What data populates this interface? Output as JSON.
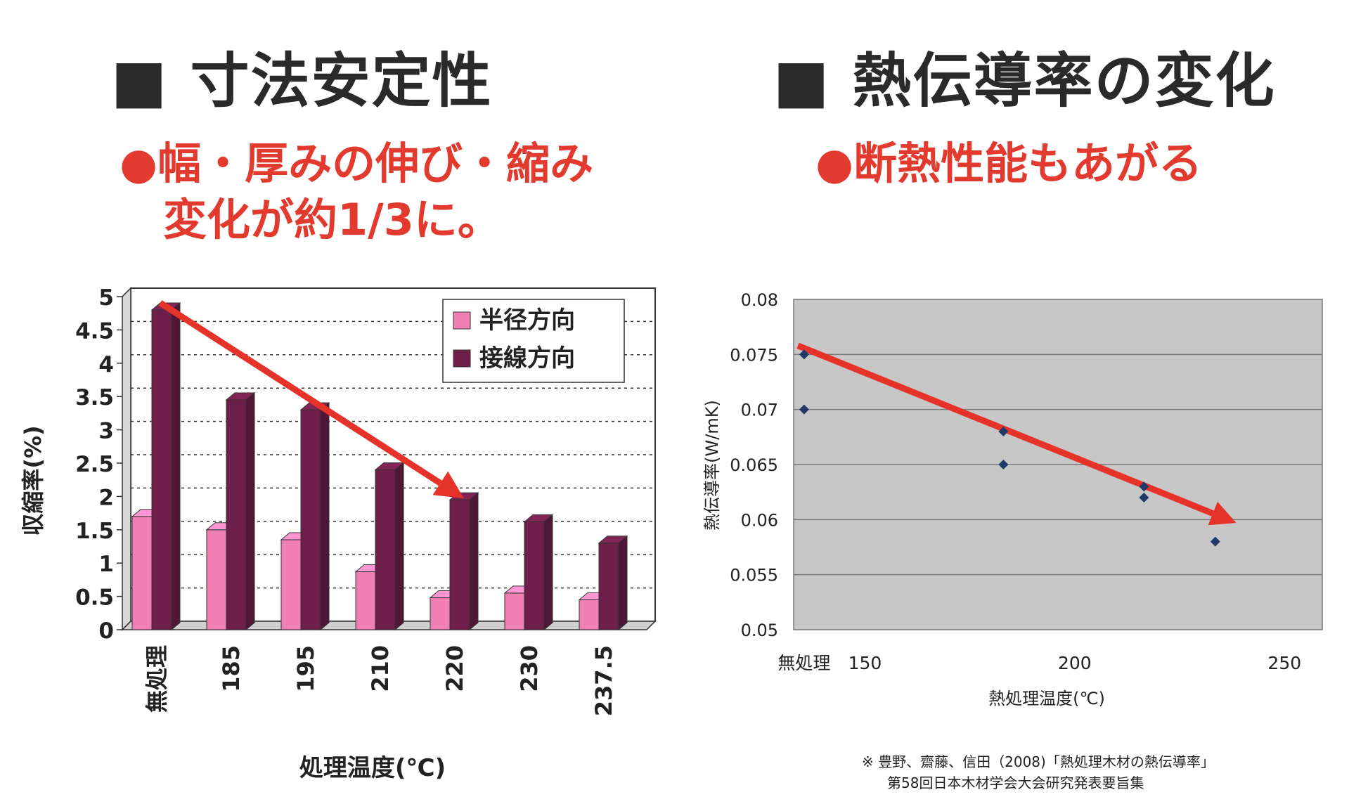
{
  "left": {
    "heading": "■ 寸法安定性",
    "sub_line1": "●幅・厚みの伸び・縮み",
    "sub_line2": "変化が約1/3に。"
  },
  "right": {
    "heading": "■ 熱伝導率の変化",
    "sub_line1": "●断熱性能もあがる"
  },
  "note": {
    "line1": "※ 豊野、齋藤、信田（2008)「熱処理木材の熱伝導率」",
    "line2": "第58回日本木材学会大会研究発表要旨集"
  },
  "colors": {
    "radial": "#f07fb3",
    "tangential": "#6e1f49",
    "arrow": "#e5332a",
    "marker": "#1f3a66",
    "plot_bg": "#c7c7c7"
  },
  "chart_data": [
    {
      "type": "bar",
      "categories": [
        "無処理",
        "185",
        "195",
        "210",
        "220",
        "230",
        "237.5"
      ],
      "series": [
        {
          "name": "半径方向",
          "values": [
            1.7,
            1.5,
            1.35,
            0.87,
            0.48,
            0.55,
            0.45
          ]
        },
        {
          "name": "接線方向",
          "values": [
            4.8,
            3.45,
            3.3,
            2.4,
            1.95,
            1.62,
            1.3
          ]
        }
      ],
      "xlabel": "処理温度(℃)",
      "ylabel": "収縮率(%)",
      "ylim": [
        0,
        5
      ],
      "yticks": [
        "0",
        "0.5",
        "1",
        "1.5",
        "2",
        "2.5",
        "3",
        "3.5",
        "4",
        "4.5",
        "5"
      ],
      "grid": true,
      "legend": "top-right",
      "trend_arrow": {
        "from": {
          "category": "無処理",
          "y": 4.8
        },
        "to": {
          "category": "220",
          "y": 1.95
        }
      }
    },
    {
      "type": "scatter",
      "x_tick_labels": [
        "無処理",
        "150",
        "200",
        "250"
      ],
      "points": [
        {
          "x": "無処理",
          "y": 0.075
        },
        {
          "x": "無処理",
          "y": 0.07
        },
        {
          "x": 183,
          "y": 0.068
        },
        {
          "x": 183,
          "y": 0.065
        },
        {
          "x": 216.5,
          "y": 0.063
        },
        {
          "x": 216.5,
          "y": 0.062
        },
        {
          "x": 233.5,
          "y": 0.058
        }
      ],
      "xlabel": "熱処理温度(℃)",
      "ylabel": "熱伝導率(W/mK)",
      "xlim": [
        133,
        259
      ],
      "ylim": [
        0.05,
        0.08
      ],
      "yticks": [
        "0.05",
        "0.055",
        "0.06",
        "0.065",
        "0.07",
        "0.075",
        "0.08"
      ],
      "grid": true,
      "trend_arrow": {
        "from": {
          "x": 134,
          "y": 0.0758
        },
        "to": {
          "x": 238.5,
          "y": 0.0597
        }
      }
    }
  ]
}
